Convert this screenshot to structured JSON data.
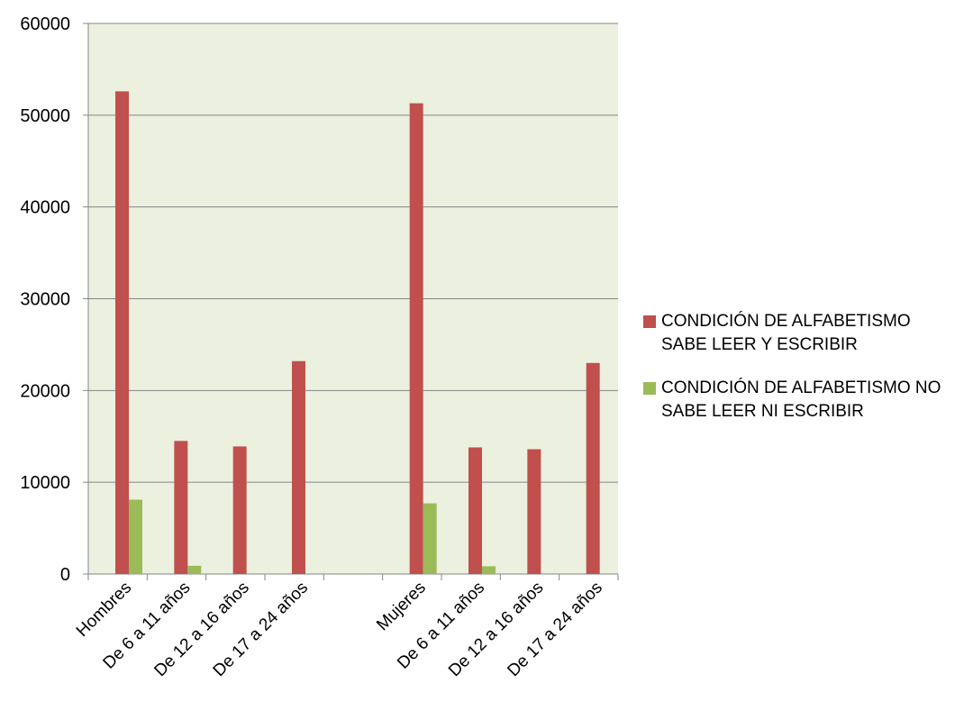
{
  "chart_data": {
    "type": "bar",
    "categories": [
      "Hombres",
      "De 6 a 11 años",
      "De 12 a 16 años",
      "De 17 a 24 años",
      "",
      "Mujeres",
      "De 6 a 11 años",
      "De 12 a 16 años",
      "De 17 a 24 años"
    ],
    "series": [
      {
        "name": "CONDICIÓN DE ALFABETISMO SABE LEER Y ESCRIBIR",
        "color": "#c0504d",
        "values": [
          52600,
          14500,
          13900,
          23200,
          null,
          51300,
          13800,
          13600,
          23000
        ]
      },
      {
        "name": "CONDICIÓN DE ALFABETISMO NO SABE LEER NI ESCRIBIR",
        "color": "#9bbb59",
        "values": [
          8100,
          900,
          0,
          0,
          null,
          7700,
          850,
          0,
          0
        ]
      }
    ],
    "ylim": [
      0,
      60000
    ],
    "yticks": [
      0,
      10000,
      20000,
      30000,
      40000,
      50000,
      60000
    ],
    "grid": true,
    "legend": "right",
    "plot_background": "#ebf1de",
    "title": "",
    "xlabel": "",
    "ylabel": ""
  }
}
